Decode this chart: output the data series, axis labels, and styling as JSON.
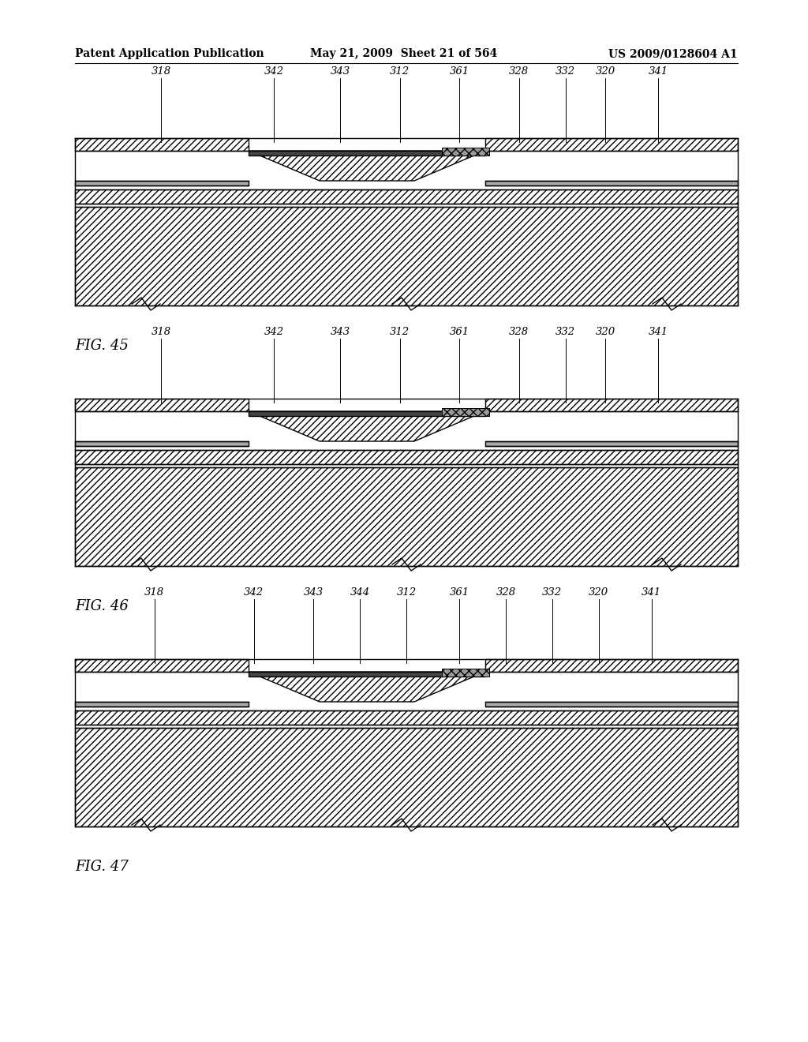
{
  "header_left": "Patent Application Publication",
  "header_mid": "May 21, 2009  Sheet 21 of 564",
  "header_right": "US 2009/0128604 A1",
  "fig45_label": "FIG. 45",
  "fig46_label": "FIG. 46",
  "fig47_label": "FIG. 47",
  "labels_fig45": [
    "318",
    "342",
    "343",
    "312",
    "361",
    "328",
    "332",
    "320",
    "341"
  ],
  "labels_fig46": [
    "318",
    "342",
    "343",
    "312",
    "361",
    "328",
    "332",
    "320",
    "341"
  ],
  "labels_fig47": [
    "318",
    "342",
    "343",
    "344",
    "312",
    "361",
    "328",
    "332",
    "320",
    "341"
  ],
  "bg_color": "#ffffff"
}
